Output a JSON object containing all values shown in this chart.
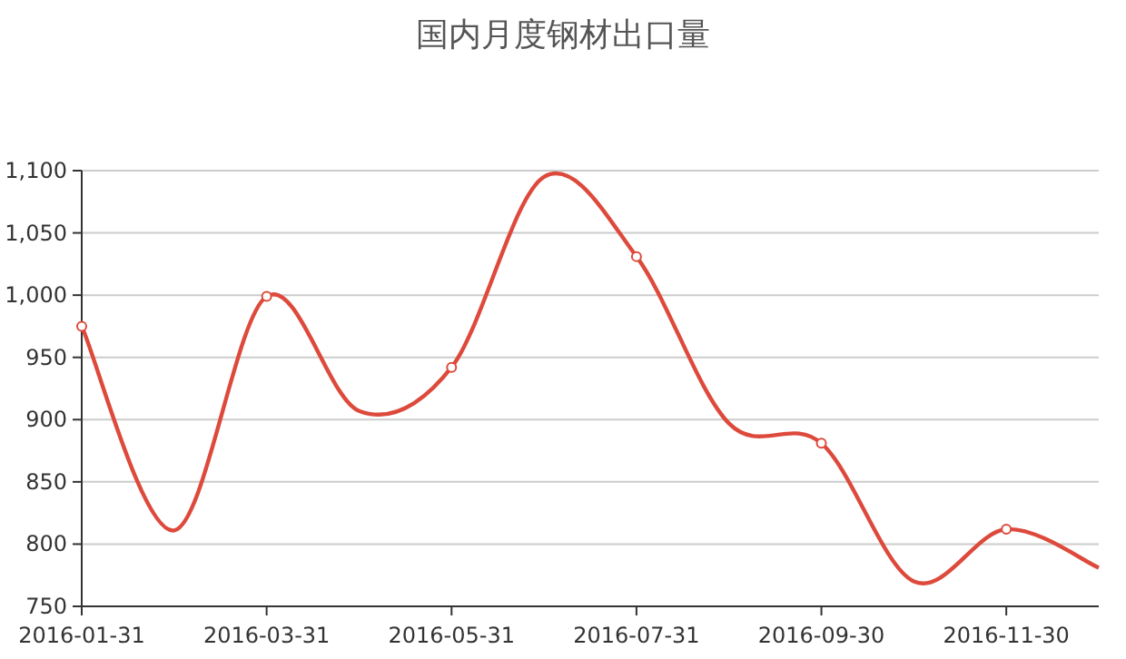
{
  "chart_data": {
    "type": "line",
    "title": "国内月度钢材出口量",
    "categories": [
      "2016-01-31",
      null,
      "2016-03-31",
      null,
      "2016-05-31",
      null,
      "2016-07-31",
      null,
      "2016-09-30",
      null,
      "2016-11-30",
      null
    ],
    "values": [
      975,
      811,
      999,
      907,
      942,
      1095,
      1031,
      897,
      881,
      770,
      812,
      781
    ],
    "color": "#dd4a3c",
    "ylim": [
      750,
      1100
    ],
    "yticks": [
      750,
      800,
      850,
      900,
      950,
      {
        "value": 1000,
        "label": "1,000"
      },
      {
        "value": 1050,
        "label": "1,050"
      },
      {
        "value": 1100,
        "label": "1,100"
      }
    ],
    "grid": "y",
    "marker": "circle"
  }
}
